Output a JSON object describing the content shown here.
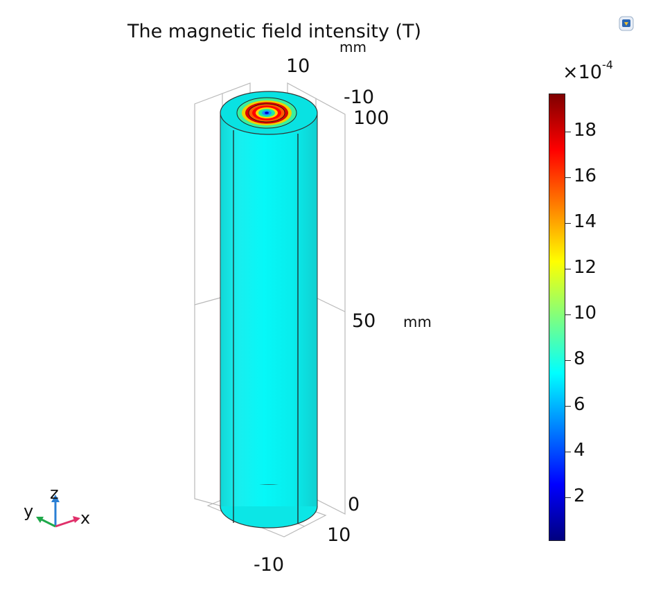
{
  "plot": {
    "title": "The magnetic field intensity  (T)",
    "unit_top": "mm",
    "unit_side": "mm",
    "axis_ticks": {
      "top_10": "10",
      "top_neg10": "-10",
      "z_100": "100",
      "z_50": "50",
      "z_0": "0",
      "bottom_10": "10",
      "bottom_neg10": "-10"
    }
  },
  "colorbar": {
    "multiplier_base": "×10",
    "multiplier_exp": "-4",
    "labels": [
      "18",
      "16",
      "14",
      "12",
      "10",
      "8",
      "6",
      "4",
      "2"
    ],
    "colormap": "rainbow (jet)",
    "surface_color": "#00f0f0"
  },
  "triad": {
    "z": "z",
    "y": "y",
    "x": "x"
  },
  "icons": {
    "view": "view-icon"
  }
}
